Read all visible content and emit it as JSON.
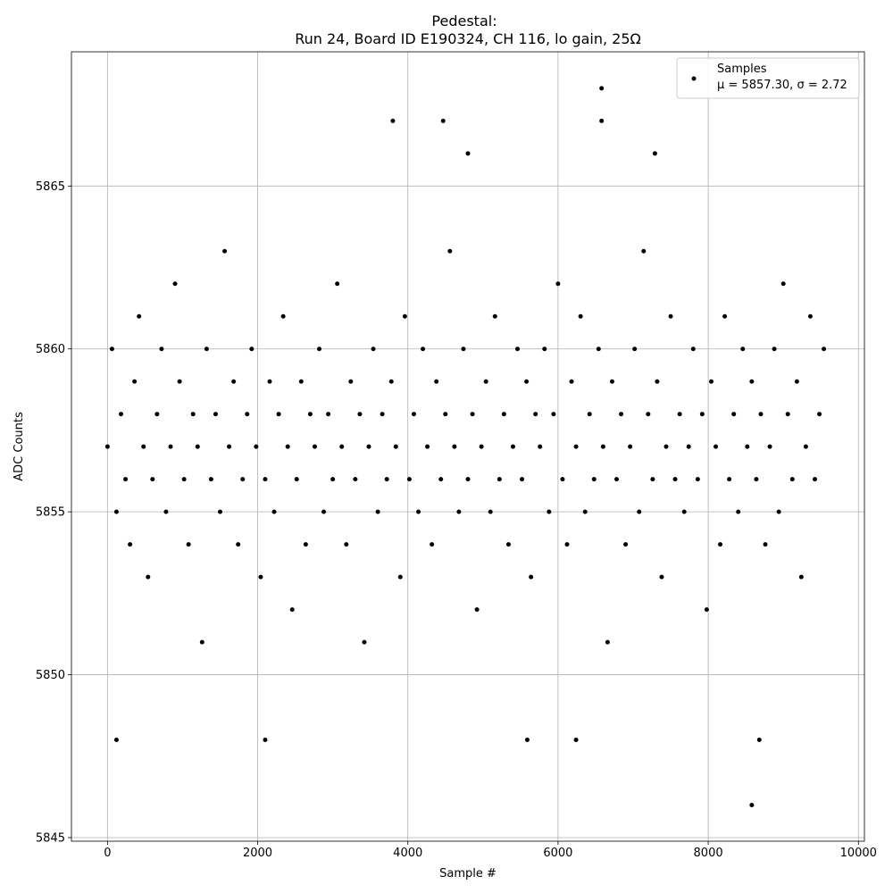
{
  "chart_data": {
    "type": "scatter",
    "title": "Pedestal:",
    "subtitle": "Run 24, Board ID E190324, CH 116, lo gain, 25Ω",
    "x_label": "Sample #",
    "y_label": "ADC Counts",
    "legend_text": "μ = 5857.30, σ = 2.72",
    "legend_position": "upper right",
    "grid": true,
    "xlim": [
      -480,
      10080
    ],
    "ylim": [
      5844.89,
      5869.12
    ],
    "xticks": [
      0,
      2000,
      4000,
      6000,
      8000,
      10000
    ],
    "yticks": [
      5845,
      5850,
      5855,
      5860,
      5865
    ],
    "series": [
      {
        "name": "Samples",
        "color": "#000000",
        "x": [
          0,
          60,
          120,
          180,
          240,
          300,
          360,
          420,
          480,
          540,
          600,
          660,
          720,
          780,
          840,
          900,
          960,
          1020,
          1080,
          1140,
          1200,
          1260,
          1320,
          1380,
          1440,
          1500,
          1560,
          1620,
          1680,
          1740,
          1800,
          1860,
          1920,
          1980,
          2040,
          2100,
          2160,
          2220,
          2280,
          2340,
          2400,
          2460,
          2520,
          2580,
          2640,
          2700,
          2760,
          2820,
          2880,
          2940,
          3000,
          3060,
          3120,
          3180,
          3240,
          3300,
          3360,
          3420,
          3480,
          3540,
          3600,
          3660,
          3720,
          3780,
          3840,
          3900,
          3960,
          4020,
          4080,
          4140,
          4200,
          4260,
          4320,
          4380,
          4440,
          4500,
          4560,
          4620,
          4680,
          4740,
          4800,
          4860,
          4920,
          4980,
          5040,
          5100,
          5160,
          5220,
          5280,
          5340,
          5400,
          5460,
          5520,
          5580,
          5640,
          5700,
          5760,
          5820,
          5880,
          5940,
          6000,
          6060,
          6120,
          6180,
          6240,
          6300,
          6360,
          6420,
          6480,
          6540,
          6600,
          6660,
          6720,
          6780,
          6840,
          6900,
          6960,
          7020,
          7080,
          7140,
          7200,
          7260,
          7320,
          7380,
          7440,
          7500,
          7560,
          7620,
          7680,
          7740,
          7800,
          7860,
          7920,
          7980,
          8040,
          8100,
          8160,
          8220,
          8280,
          8340,
          8400,
          8460,
          8520,
          8580,
          8640,
          8700,
          8760,
          8820,
          8880,
          8940,
          9000,
          9060,
          9120,
          9180,
          9240,
          9300,
          9360,
          9420,
          9480,
          9540,
          3800,
          4470,
          6580,
          6580,
          4800,
          7290,
          8580,
          120,
          2100,
          5590,
          6240,
          8680
        ],
        "values": [
          5857,
          5860,
          5855,
          5858,
          5856,
          5854,
          5859,
          5861,
          5857,
          5853,
          5856,
          5858,
          5860,
          5855,
          5857,
          5862,
          5859,
          5856,
          5854,
          5858,
          5857,
          5851,
          5860,
          5856,
          5858,
          5855,
          5863,
          5857,
          5859,
          5854,
          5856,
          5858,
          5860,
          5857,
          5853,
          5856,
          5859,
          5855,
          5858,
          5861,
          5857,
          5852,
          5856,
          5859,
          5854,
          5858,
          5857,
          5860,
          5855,
          5858,
          5856,
          5862,
          5857,
          5854,
          5859,
          5856,
          5858,
          5851,
          5857,
          5860,
          5855,
          5858,
          5856,
          5859,
          5857,
          5853,
          5861,
          5856,
          5858,
          5855,
          5860,
          5857,
          5854,
          5859,
          5856,
          5858,
          5863,
          5857,
          5855,
          5860,
          5856,
          5858,
          5852,
          5857,
          5859,
          5855,
          5861,
          5856,
          5858,
          5854,
          5857,
          5860,
          5856,
          5859,
          5853,
          5858,
          5857,
          5860,
          5855,
          5858,
          5862,
          5856,
          5854,
          5859,
          5857,
          5861,
          5855,
          5858,
          5856,
          5860,
          5857,
          5851,
          5859,
          5856,
          5858,
          5854,
          5857,
          5860,
          5855,
          5863,
          5858,
          5856,
          5859,
          5853,
          5857,
          5861,
          5856,
          5858,
          5855,
          5857,
          5860,
          5856,
          5858,
          5852,
          5859,
          5857,
          5854,
          5861,
          5856,
          5858,
          5855,
          5860,
          5857,
          5859,
          5856,
          5858,
          5854,
          5857,
          5860,
          5855,
          5862,
          5858,
          5856,
          5859,
          5853,
          5857,
          5861,
          5856,
          5858,
          5860,
          5867,
          5867,
          5868,
          5867,
          5866,
          5866,
          5846,
          5848,
          5848,
          5848,
          5848,
          5848
        ]
      }
    ]
  }
}
